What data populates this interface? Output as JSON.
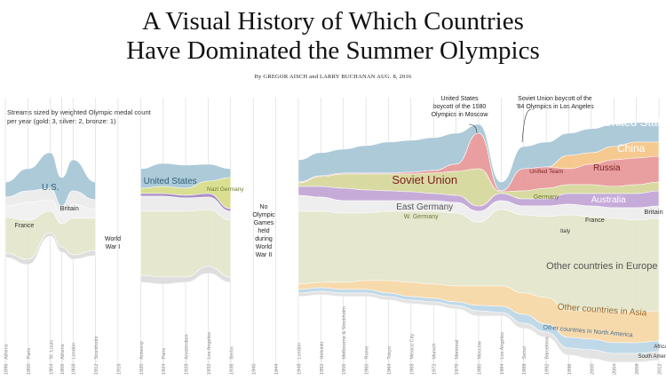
{
  "header": {
    "title_line1": "A Visual History of Which Countries",
    "title_line2": "Have Dominated the Summer Olympics",
    "byline": "By GREGOR AISCH and LARRY BUCHANAN    AUG. 8, 2016"
  },
  "note": {
    "text_line1": "Streams sized by weighted Olympic medal count",
    "text_line2": "per year (gold: 3, silver: 2, bronze: 1)"
  },
  "annotations": {
    "us_boycott": [
      "United States",
      "boycott of the 1980",
      "Olympics in Moscow"
    ],
    "soviet_boycott": [
      "Soviet Union boycott of the",
      "'84 Olympics in Los Angeles"
    ]
  },
  "gaps": {
    "ww1": [
      "World",
      "War I"
    ],
    "no_games": [
      "No",
      "Olympic",
      "Games",
      "held",
      "during",
      "World",
      "War II"
    ]
  },
  "colors": {
    "us": "#a9c8d8",
    "soviet": "#e89a9a",
    "east_germany": "#d6d99e",
    "west_germany": "#d8dd8c",
    "china": "#f5c78a",
    "russia": "#ee9a9a",
    "unified_team": "#e7a9a6",
    "germany": "#d5dc83",
    "australia": "#c4a7d8",
    "britain": "#ececec",
    "france": "#f1f1f1",
    "italy": "#f4f4f4",
    "europe": "#e4e6cc",
    "asia": "#f7d9a8",
    "north_america": "#bcd7e8",
    "africa": "#e6e6e6",
    "south_america": "#eeeeee",
    "grid": "#cfcfcf"
  },
  "chart_data": {
    "type": "area",
    "subtype": "streamgraph",
    "description_printed": "Streams sized by weighted Olympic medal count per year (gold: 3, silver: 2, bronze: 1)",
    "x_ticks": [
      "1896 · Athens",
      "1900 · Paris",
      "1904 · St. Louis",
      "1906 · Athens",
      "1908 · London",
      "1912 · Stockholm",
      "1916",
      "1920 · Antwerp",
      "1924 · Paris",
      "1928 · Amsterdam",
      "1932 · Los Angeles",
      "1936 · Berlin",
      "1940",
      "1944",
      "1948 · London",
      "1952 · Helsinki",
      "1956 · Melbourne & Stockholm",
      "1960 · Rome",
      "1964 · Tokyo",
      "1968 · Mexico City",
      "1972 · Munich",
      "1976 · Montreal",
      "1980 · Moscow",
      "1984 · Los Angeles",
      "1988 · Seoul",
      "1992 · Barcelona",
      "1996",
      "2000",
      "2004",
      "2008",
      "2012"
    ],
    "years": [
      1896,
      1900,
      1904,
      1906,
      1908,
      1912,
      1916,
      1920,
      1924,
      1928,
      1932,
      1936,
      1940,
      1944,
      1948,
      1952,
      1956,
      1960,
      1964,
      1968,
      1972,
      1976,
      1980,
      1984,
      1988,
      1992,
      1996,
      2000,
      2004,
      2008,
      2012
    ],
    "series": [
      {
        "name": "U.S.",
        "label_year": 1904
      },
      {
        "name": "United States",
        "label_year": 1924
      },
      {
        "name": "United States",
        "label_year": 2008
      },
      {
        "name": "Britain",
        "label_year": 1908
      },
      {
        "name": "Britain",
        "label_year": 2012
      },
      {
        "name": "France",
        "label_year": 1900
      },
      {
        "name": "France",
        "label_year": 2000
      },
      {
        "name": "Nazi Germany",
        "label_year": 1936
      },
      {
        "name": "Soviet Union",
        "label_year": 1972
      },
      {
        "name": "East Germany",
        "label_year": 1972
      },
      {
        "name": "W. Germany",
        "label_year": 1972
      },
      {
        "name": "Unified Team",
        "label_year": 1992
      },
      {
        "name": "Germany",
        "label_year": 1992
      },
      {
        "name": "China",
        "label_year": 2008
      },
      {
        "name": "Russia",
        "label_year": 2004
      },
      {
        "name": "Australia",
        "label_year": 2004
      },
      {
        "name": "Italy",
        "label_year": 1996
      },
      {
        "name": "Other countries in Europe",
        "label_year": 2000
      },
      {
        "name": "Other countries in Asia",
        "label_year": 2000
      },
      {
        "name": "Other countries in North America",
        "label_year": 2000
      },
      {
        "name": "Africa",
        "label_year": 2012
      },
      {
        "name": "South America",
        "label_year": 2012
      }
    ]
  }
}
